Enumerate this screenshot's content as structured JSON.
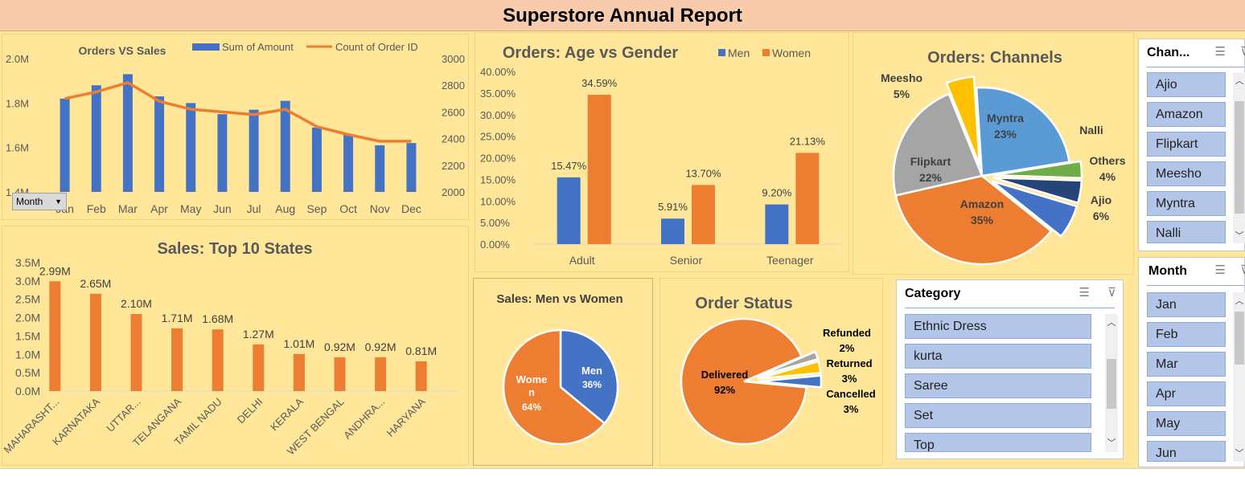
{
  "report_title": "Superstore Annual Report",
  "month_button": {
    "label": "Month",
    "arrow": "▼"
  },
  "chart_data": [
    {
      "id": "orders_vs_sales",
      "type": "bar",
      "title": "Orders VS Sales",
      "categories": [
        "Jan",
        "Feb",
        "Mar",
        "Apr",
        "May",
        "Jun",
        "Jul",
        "Aug",
        "Sep",
        "Oct",
        "Nov",
        "Dec"
      ],
      "series": [
        {
          "name": "Sum of Amount",
          "type": "bar",
          "axis": "left",
          "color": "#4472c4",
          "values": [
            1.82,
            1.88,
            1.93,
            1.83,
            1.8,
            1.75,
            1.77,
            1.81,
            1.69,
            1.66,
            1.61,
            1.62
          ]
        },
        {
          "name": "Count of Order ID",
          "type": "line",
          "axis": "right",
          "color": "#ed7d31",
          "values": [
            2700,
            2750,
            2820,
            2680,
            2620,
            2600,
            2580,
            2620,
            2490,
            2430,
            2380,
            2380
          ]
        }
      ],
      "ylim": [
        1.4,
        2.0
      ],
      "y_ticks": [
        "1.4M",
        "1.6M",
        "1.8M",
        "2.0M"
      ],
      "y2lim": [
        2000,
        3000
      ],
      "y2_ticks": [
        "2000",
        "2200",
        "2400",
        "2600",
        "2800",
        "3000"
      ],
      "legend": "top"
    },
    {
      "id": "age_vs_gender",
      "type": "bar",
      "title": "Orders: Age vs Gender",
      "categories": [
        "Adult",
        "Senior",
        "Teenager"
      ],
      "series": [
        {
          "name": "Men",
          "color": "#4472c4",
          "values": [
            15.47,
            5.91,
            9.2
          ],
          "labels": [
            "15.47%",
            "5.91%",
            "9.20%"
          ]
        },
        {
          "name": "Women",
          "color": "#ed7d31",
          "values": [
            34.59,
            13.7,
            21.13
          ],
          "labels": [
            "34.59%",
            "13.70%",
            "21.13%"
          ]
        }
      ],
      "ylim": [
        0,
        40
      ],
      "y_ticks": [
        "0.00%",
        "5.00%",
        "10.00%",
        "15.00%",
        "20.00%",
        "25.00%",
        "30.00%",
        "35.00%",
        "40.00%"
      ],
      "legend": "top-right"
    },
    {
      "id": "channels",
      "type": "pie",
      "title": "Orders: Channels",
      "slices": [
        {
          "label": "Myntra",
          "pct": "23%",
          "value": 23,
          "color": "#5b9bd5"
        },
        {
          "label": "Nalli",
          "pct": "",
          "value": 3,
          "color": "#70ad47"
        },
        {
          "label": "Others",
          "pct": "4%",
          "value": 4,
          "color": "#264478"
        },
        {
          "label": "Ajio",
          "pct": "6%",
          "value": 6,
          "color": "#4472c4"
        },
        {
          "label": "Amazon",
          "pct": "35%",
          "value": 35,
          "color": "#ed7d31"
        },
        {
          "label": "Flipkart",
          "pct": "22%",
          "value": 22,
          "color": "#a5a5a5"
        },
        {
          "label": "Meesho",
          "pct": "5%",
          "value": 5,
          "color": "#ffc000"
        }
      ]
    },
    {
      "id": "top_states",
      "type": "bar",
      "title": "Sales: Top 10 States",
      "categories": [
        "MAHARASHT...",
        "KARNATAKA",
        "UTTAR...",
        "TELANGANA",
        "TAMIL NADU",
        "DELHI",
        "KERALA",
        "WEST BENGAL",
        "ANDHRA...",
        "HARYANA"
      ],
      "values": [
        2.99,
        2.65,
        2.1,
        1.71,
        1.68,
        1.27,
        1.01,
        0.92,
        0.92,
        0.81
      ],
      "labels": [
        "2.99M",
        "2.65M",
        "2.10M",
        "1.71M",
        "1.68M",
        "1.27M",
        "1.01M",
        "0.92M",
        "0.92M",
        "0.81M"
      ],
      "color": "#ed7d31",
      "ylim": [
        0,
        3.5
      ],
      "y_ticks": [
        "0.0M",
        "0.5M",
        "1.0M",
        "1.5M",
        "2.0M",
        "2.5M",
        "3.0M",
        "3.5M"
      ]
    },
    {
      "id": "men_vs_women",
      "type": "pie",
      "title": "Sales: Men vs Women",
      "slices": [
        {
          "label": "Men",
          "pct": "36%",
          "value": 36,
          "color": "#4472c4"
        },
        {
          "label": "Wome\nn",
          "pct": "64%",
          "value": 64,
          "color": "#ed7d31"
        }
      ]
    },
    {
      "id": "order_status",
      "type": "pie",
      "title": "Order Status",
      "slices": [
        {
          "label": "Delivered",
          "pct": "92%",
          "value": 92,
          "color": "#ed7d31"
        },
        {
          "label": "Refunded",
          "pct": "2%",
          "value": 2,
          "color": "#a5a5a5"
        },
        {
          "label": "Returned",
          "pct": "3%",
          "value": 3,
          "color": "#ffc000"
        },
        {
          "label": "Cancelled",
          "pct": "3%",
          "value": 3,
          "color": "#4472c4"
        }
      ]
    }
  ],
  "slicers": {
    "channel": {
      "title": "Chan...",
      "items": [
        "Ajio",
        "Amazon",
        "Flipkart",
        "Meesho",
        "Myntra",
        "Nalli"
      ]
    },
    "category": {
      "title": "Category",
      "items": [
        "Ethnic Dress",
        "kurta",
        "Saree",
        "Set",
        "Top"
      ]
    },
    "month": {
      "title": "Month",
      "items": [
        "Jan",
        "Feb",
        "Mar",
        "Apr",
        "May",
        "Jun"
      ]
    }
  },
  "icons": {
    "multiselect": "☰",
    "clear_filter": "⊽",
    "scroll_up": "︿",
    "scroll_down": "﹀"
  },
  "colors": {
    "header_bg": "#f8cbad",
    "dashboard_bg": "#ffe699",
    "blue": "#4472c4",
    "orange": "#ed7d31",
    "slicer_item": "#b4c6e7"
  }
}
